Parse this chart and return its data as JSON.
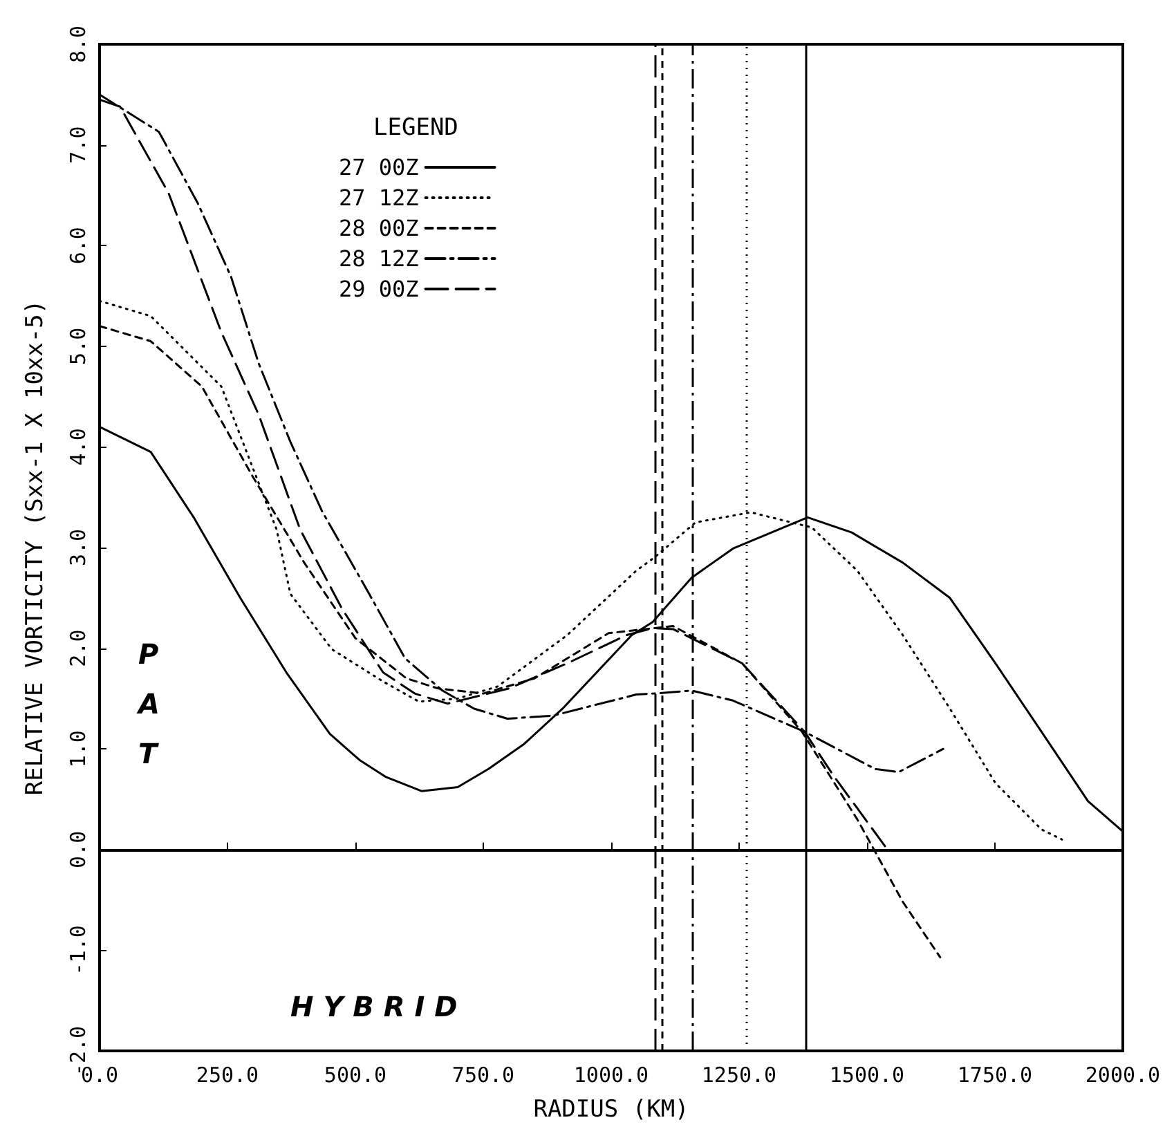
{
  "chart_data": {
    "type": "line",
    "xlabel": "RADIUS (KM)",
    "ylabel": "RELATIVE VORTICITY (Sxx-1 X 10xx-5)",
    "legend_title": "LEGEND",
    "legend": "top left",
    "grid": false,
    "marker": "none",
    "xlim": [
      0,
      2000
    ],
    "xticks": [
      {
        "value": 0,
        "label": "0.0"
      },
      {
        "value": 250,
        "label": "250.0"
      },
      {
        "value": 500,
        "label": "500.0"
      },
      {
        "value": 750,
        "label": "750.0"
      },
      {
        "value": 1000,
        "label": "1000.0"
      },
      {
        "value": 1250,
        "label": "1250.0"
      },
      {
        "value": 1500,
        "label": "1500.0"
      },
      {
        "value": 1750,
        "label": "1750.0"
      },
      {
        "value": 2000,
        "label": "2000.0"
      }
    ],
    "ylim": [
      -2,
      8
    ],
    "yticks": [
      {
        "value": -2,
        "label": "-2.0"
      },
      {
        "value": -1,
        "label": "-1.0"
      },
      {
        "value": 0,
        "label": "0.0"
      },
      {
        "value": 1,
        "label": "1.0"
      },
      {
        "value": 2,
        "label": "2.0"
      },
      {
        "value": 3,
        "label": "3.0"
      },
      {
        "value": 4,
        "label": "4.0"
      },
      {
        "value": 5,
        "label": "5.0"
      },
      {
        "value": 6,
        "label": "6.0"
      },
      {
        "value": 7,
        "label": "7.0"
      },
      {
        "value": 8,
        "label": "8.0"
      }
    ],
    "annotations": [
      "PAT",
      "H Y B R I D"
    ],
    "ref_lines": [
      {
        "axis": "y",
        "value": 0,
        "color": "#000000",
        "line_style": "solid"
      },
      {
        "axis": "x",
        "value": 1085,
        "color": "#000000",
        "line_style": "longdash"
      },
      {
        "axis": "x",
        "value": 1100,
        "color": "#000000",
        "line_style": "dashed"
      },
      {
        "axis": "x",
        "value": 1160,
        "color": "#000000",
        "line_style": "dashdot"
      },
      {
        "axis": "x",
        "value": 1265,
        "color": "#000000",
        "line_style": "dotted"
      },
      {
        "axis": "x",
        "value": 1380,
        "color": "#000000",
        "line_style": "solid"
      }
    ],
    "series": [
      {
        "name": "27 00Z",
        "color": "#000000",
        "line_style": "solid",
        "x": [
          0,
          100,
          184,
          275,
          365,
          450,
          508,
          560,
          630,
          700,
          760,
          830,
          905,
          1040,
          1081,
          1157,
          1238,
          1384,
          1470,
          1570,
          1662,
          1751,
          1841,
          1932,
          2000
        ],
        "values": [
          4.2,
          3.95,
          3.3,
          2.5,
          1.76,
          1.15,
          0.89,
          0.72,
          0.58,
          0.62,
          0.8,
          1.05,
          1.4,
          2.13,
          2.26,
          2.7,
          2.99,
          3.3,
          3.15,
          2.85,
          2.5,
          1.85,
          1.17,
          0.48,
          0.18
        ]
      },
      {
        "name": "27 12Z",
        "color": "#000000",
        "line_style": "dotted",
        "x": [
          0,
          100,
          238,
          346,
          373,
          454,
          554,
          624,
          700,
          778,
          914,
          1049,
          1084,
          1165,
          1273,
          1392,
          1481,
          1570,
          1662,
          1751,
          1841,
          1881
        ],
        "values": [
          5.45,
          5.3,
          4.6,
          3.18,
          2.54,
          1.99,
          1.67,
          1.47,
          1.5,
          1.62,
          2.13,
          2.77,
          2.9,
          3.25,
          3.35,
          3.2,
          2.77,
          2.13,
          1.4,
          0.66,
          0.2,
          0.1
        ]
      },
      {
        "name": "28 00Z",
        "color": "#000000",
        "line_style": "dashed",
        "x": [
          0,
          100,
          200,
          300,
          400,
          500,
          600,
          662,
          750,
          850,
          995,
          1085,
          1121,
          1256,
          1373,
          1481,
          1570,
          1643
        ],
        "values": [
          5.2,
          5.05,
          4.6,
          3.7,
          2.85,
          2.1,
          1.7,
          1.6,
          1.55,
          1.7,
          2.15,
          2.2,
          2.22,
          1.85,
          1.17,
          0.3,
          -0.52,
          -1.07
        ]
      },
      {
        "name": "28 12Z",
        "color": "#000000",
        "line_style": "dashdot",
        "x": [
          0,
          116,
          192,
          257,
          311,
          373,
          435,
          527,
          597,
          670,
          732,
          797,
          886,
          1049,
          1084,
          1157,
          1238,
          1378,
          1516,
          1562,
          1649
        ],
        "values": [
          7.5,
          7.13,
          6.42,
          5.69,
          4.83,
          4.05,
          3.36,
          2.54,
          1.9,
          1.58,
          1.4,
          1.3,
          1.33,
          1.54,
          1.55,
          1.58,
          1.48,
          1.17,
          0.8,
          0.77,
          1.0
        ]
      },
      {
        "name": "29 00Z",
        "color": "#000000",
        "line_style": "longdash",
        "x": [
          0,
          40,
          135,
          238,
          311,
          392,
          473,
          554,
          616,
          680,
          800,
          914,
          1030,
          1081,
          1121,
          1256,
          1378,
          1435,
          1540
        ],
        "values": [
          7.45,
          7.38,
          6.52,
          5.14,
          4.32,
          3.18,
          2.4,
          1.76,
          1.55,
          1.45,
          1.6,
          1.85,
          2.13,
          2.2,
          2.19,
          1.85,
          1.17,
          0.73,
          0
        ]
      }
    ]
  }
}
